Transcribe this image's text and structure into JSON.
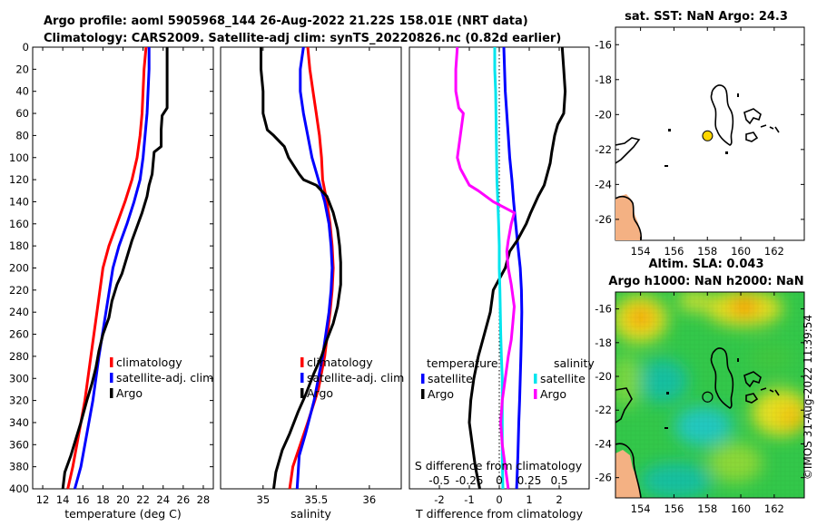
{
  "titles": {
    "line1": "Argo profile: aoml 5905968_144 26-Aug-2022 21.22S 158.01E (NRT data)",
    "line2": "Climatology: CARS2009. Satellite-adj clim: synTS_20220826.nc (0.82d earlier)"
  },
  "watermark": "©IMOS 31-Aug-2022 11:39:54",
  "colors": {
    "climatology": "#ff0000",
    "satellite": "#0000ff",
    "argo": "#000000",
    "salinity_satellite": "#00e5ee",
    "salinity_argo": "#ff00ff",
    "marker": "#ffd700",
    "land": "#f4b183"
  },
  "chart_data": [
    {
      "id": "temperature",
      "type": "line",
      "xlabel": "temperature (deg C)",
      "ylabel": "",
      "xlim": [
        11,
        29
      ],
      "ylim": [
        400,
        0
      ],
      "xticks": [
        12,
        14,
        16,
        18,
        20,
        22,
        24,
        26,
        28
      ],
      "yticks": [
        0,
        20,
        40,
        60,
        80,
        100,
        120,
        140,
        160,
        180,
        200,
        220,
        240,
        260,
        280,
        300,
        320,
        340,
        360,
        380,
        400
      ],
      "legend": [
        "climatology",
        "satellite-adj. clim",
        "Argo"
      ],
      "series": [
        {
          "name": "climatology",
          "color": "#ff0000",
          "x": [
            22.3,
            22.1,
            22.0,
            21.9,
            21.7,
            21.4,
            20.9,
            20.2,
            19.4,
            18.6,
            18.0,
            17.4,
            16.8,
            16.2,
            15.6,
            15.0,
            14.5
          ],
          "y": [
            0,
            20,
            40,
            60,
            80,
            100,
            120,
            140,
            160,
            180,
            200,
            240,
            280,
            320,
            350,
            380,
            400
          ]
        },
        {
          "name": "satellite-adj. clim",
          "color": "#0000ff",
          "x": [
            22.6,
            22.6,
            22.5,
            22.4,
            22.2,
            22.0,
            21.7,
            21.1,
            20.4,
            19.6,
            19.0,
            18.3,
            17.6,
            17.0,
            16.4,
            15.8,
            15.2
          ],
          "y": [
            0,
            20,
            40,
            60,
            80,
            100,
            120,
            140,
            160,
            180,
            200,
            240,
            280,
            320,
            350,
            380,
            400
          ]
        },
        {
          "name": "Argo",
          "color": "#000000",
          "x": [
            24.4,
            24.4,
            24.4,
            24.4,
            23.9,
            23.8,
            23.8,
            23.1,
            23.0,
            22.9,
            22.6,
            22.4,
            21.9,
            21.5,
            20.9,
            20.4,
            19.9,
            19.4,
            18.9,
            18.6,
            18.0,
            17.6,
            17.3,
            16.9,
            16.4,
            15.8,
            15.3,
            14.8,
            14.2,
            14.0
          ],
          "y": [
            0,
            20,
            40,
            55,
            62,
            75,
            90,
            95,
            105,
            115,
            125,
            135,
            150,
            160,
            175,
            190,
            205,
            215,
            230,
            245,
            260,
            275,
            290,
            305,
            320,
            340,
            355,
            370,
            385,
            400
          ]
        }
      ]
    },
    {
      "id": "salinity",
      "type": "line",
      "xlabel": "salinity",
      "xlim": [
        34.6,
        36.3
      ],
      "ylim": [
        400,
        0
      ],
      "xticks": [
        35,
        35.5,
        36
      ],
      "xticklabels": [
        "35",
        "35.5",
        "36"
      ],
      "legend": [
        "climatology",
        "satellite-adj. clim",
        "Argo"
      ],
      "series": [
        {
          "name": "climatology",
          "color": "#ff0000",
          "x": [
            35.42,
            35.44,
            35.47,
            35.5,
            35.53,
            35.55,
            35.56,
            35.6,
            35.63,
            35.65,
            35.66,
            35.65,
            35.63,
            35.58,
            35.52,
            35.42,
            35.35,
            35.28,
            35.25
          ],
          "y": [
            0,
            20,
            40,
            60,
            80,
            100,
            120,
            140,
            160,
            180,
            200,
            220,
            240,
            280,
            310,
            340,
            360,
            380,
            400
          ]
        },
        {
          "name": "satellite-adj. clim",
          "color": "#0000ff",
          "x": [
            35.38,
            35.35,
            35.35,
            35.38,
            35.42,
            35.46,
            35.52,
            35.58,
            35.62,
            35.64,
            35.65,
            35.64,
            35.62,
            35.56,
            35.48,
            35.4,
            35.34,
            35.32
          ],
          "y": [
            0,
            20,
            40,
            60,
            80,
            100,
            120,
            140,
            160,
            180,
            200,
            220,
            240,
            280,
            320,
            350,
            370,
            400
          ]
        },
        {
          "name": "Argo",
          "color": "#000000",
          "x": [
            34.98,
            34.98,
            35.0,
            35.0,
            35.04,
            35.1,
            35.2,
            35.24,
            35.34,
            35.38,
            35.5,
            35.6,
            35.66,
            35.7,
            35.72,
            35.73,
            35.73,
            35.7,
            35.66,
            35.6,
            35.55,
            35.48,
            35.4,
            35.33,
            35.25,
            35.18,
            35.12,
            35.1
          ],
          "y": [
            0,
            20,
            40,
            60,
            75,
            80,
            90,
            100,
            115,
            120,
            125,
            135,
            150,
            165,
            180,
            195,
            215,
            235,
            250,
            265,
            280,
            295,
            315,
            330,
            350,
            365,
            385,
            400
          ]
        }
      ]
    },
    {
      "id": "differences",
      "type": "line",
      "xlabel": "T difference from climatology",
      "top_axis_label": "S difference from climatology",
      "xlim": [
        -3,
        3
      ],
      "ylim": [
        400,
        0
      ],
      "xticks": [
        -2,
        -1,
        0,
        1,
        2
      ],
      "xticklabels": [
        "-2",
        "-1",
        "0",
        "1",
        "2"
      ],
      "top_xticks": [
        -2,
        -1,
        0,
        1,
        2
      ],
      "top_xticklabels": [
        "-0.5",
        "-0.25",
        "0",
        "0.25",
        "0.5"
      ],
      "legend_temperature_header": "temperature",
      "legend_salinity_header": "salinity",
      "legend": [
        "satellite",
        "Argo",
        "satellite",
        "Argo"
      ],
      "series": [
        {
          "name": "temperature satellite",
          "color": "#0000ff",
          "x": [
            0.15,
            0.2,
            0.3,
            0.35,
            0.42,
            0.48,
            0.55,
            0.62,
            0.7,
            0.74,
            0.75,
            0.74,
            0.72,
            0.7,
            0.68,
            0.65,
            0.62,
            0.58
          ],
          "y": [
            0,
            40,
            80,
            100,
            120,
            140,
            160,
            180,
            200,
            220,
            240,
            260,
            280,
            300,
            320,
            340,
            370,
            400
          ]
        },
        {
          "name": "temperature Argo",
          "color": "#000000",
          "x": [
            2.1,
            2.15,
            2.2,
            2.15,
            1.95,
            1.85,
            1.75,
            1.7,
            1.6,
            1.5,
            1.3,
            1.05,
            0.9,
            0.6,
            0.35,
            0.2,
            -0.2,
            -0.3,
            -0.5,
            -0.7,
            -0.85,
            -0.95,
            -1.0,
            -0.9,
            -0.8,
            -0.65
          ],
          "y": [
            0,
            20,
            40,
            60,
            70,
            80,
            95,
            105,
            115,
            125,
            135,
            150,
            160,
            175,
            185,
            200,
            220,
            240,
            260,
            280,
            300,
            320,
            340,
            360,
            380,
            400
          ]
        },
        {
          "name": "salinity satellite",
          "color": "#00e5ee",
          "x": [
            -0.15,
            -0.15,
            -0.12,
            -0.1,
            -0.08,
            -0.05,
            -0.02,
            0.0,
            0.0,
            0.02,
            0.05,
            0.07,
            0.1,
            0.1,
            0.1,
            0.12
          ],
          "y": [
            0,
            20,
            40,
            80,
            120,
            140,
            160,
            180,
            200,
            220,
            260,
            280,
            300,
            330,
            370,
            400
          ]
        },
        {
          "name": "salinity Argo",
          "color": "#ff00ff",
          "x": [
            -1.4,
            -1.45,
            -1.45,
            -1.35,
            -1.2,
            -1.3,
            -1.4,
            -1.3,
            -1.0,
            -0.7,
            -0.2,
            0.5,
            0.4,
            0.3,
            0.25,
            0.3,
            0.4,
            0.5,
            0.45,
            0.4,
            0.3,
            0.2,
            0.1,
            0.05,
            0.1,
            0.2,
            0.3
          ],
          "y": [
            0,
            20,
            40,
            55,
            60,
            80,
            100,
            110,
            125,
            130,
            140,
            150,
            160,
            175,
            185,
            200,
            215,
            235,
            250,
            265,
            280,
            300,
            320,
            340,
            360,
            380,
            400
          ]
        }
      ]
    },
    {
      "id": "sst_map",
      "type": "scatter",
      "title": "sat. SST: NaN Argo: 24.3",
      "xlim": [
        152.5,
        163.8
      ],
      "ylim": [
        -27.2,
        -15
      ],
      "xticks": [
        154,
        156,
        158,
        160,
        162
      ],
      "yticks": [
        -16,
        -18,
        -20,
        -22,
        -24,
        -26
      ],
      "point": {
        "lon": 158.01,
        "lat": -21.22
      }
    },
    {
      "id": "sla_map",
      "type": "heatmap",
      "title_line1": "Altim. SLA: 0.043",
      "title_line2": "Argo h1000: NaN h2000: NaN",
      "xlim": [
        152.5,
        163.8
      ],
      "ylim": [
        -27.2,
        -15
      ],
      "xticks": [
        154,
        156,
        158,
        160,
        162
      ],
      "yticks": [
        -16,
        -18,
        -20,
        -22,
        -24,
        -26
      ],
      "point": {
        "lon": 158.01,
        "lat": -21.22
      }
    }
  ]
}
